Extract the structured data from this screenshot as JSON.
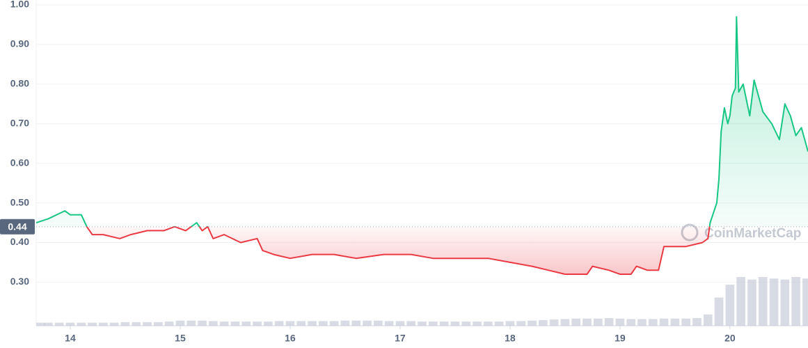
{
  "chart_data": {
    "type": "line",
    "x": [
      13.69,
      13.8,
      13.95,
      14.0,
      14.1,
      14.15,
      14.2,
      14.3,
      14.45,
      14.55,
      14.7,
      14.85,
      14.95,
      15.05,
      15.15,
      15.2,
      15.25,
      15.3,
      15.4,
      15.55,
      15.7,
      15.75,
      15.85,
      16.0,
      16.2,
      16.4,
      16.6,
      16.85,
      17.1,
      17.3,
      17.5,
      17.7,
      17.8,
      18.0,
      18.2,
      18.35,
      18.5,
      18.7,
      18.75,
      18.9,
      19.0,
      19.1,
      19.15,
      19.25,
      19.35,
      19.4,
      19.6,
      19.75,
      19.8,
      19.82,
      19.88,
      19.9,
      19.92,
      19.95,
      19.98,
      20.0,
      20.02,
      20.05,
      20.06,
      20.08,
      20.12,
      20.18,
      20.22,
      20.3,
      20.38,
      20.45,
      20.5,
      20.55,
      20.6,
      20.65,
      20.71
    ],
    "values": [
      0.45,
      0.46,
      0.48,
      0.47,
      0.47,
      0.44,
      0.42,
      0.42,
      0.41,
      0.42,
      0.43,
      0.43,
      0.44,
      0.43,
      0.45,
      0.43,
      0.44,
      0.41,
      0.42,
      0.4,
      0.41,
      0.38,
      0.37,
      0.36,
      0.37,
      0.37,
      0.36,
      0.37,
      0.37,
      0.36,
      0.36,
      0.36,
      0.36,
      0.35,
      0.34,
      0.33,
      0.32,
      0.32,
      0.34,
      0.33,
      0.32,
      0.32,
      0.34,
      0.33,
      0.33,
      0.39,
      0.39,
      0.4,
      0.41,
      0.45,
      0.5,
      0.56,
      0.68,
      0.74,
      0.7,
      0.72,
      0.77,
      0.79,
      0.97,
      0.78,
      0.8,
      0.72,
      0.81,
      0.73,
      0.7,
      0.66,
      0.75,
      0.72,
      0.67,
      0.69,
      0.63
    ],
    "baseline": 0.44,
    "up_color": "#16c784",
    "down_color": "#ea3943",
    "volume_x": [
      13.7,
      13.8,
      13.9,
      14.0,
      14.1,
      14.2,
      14.3,
      14.4,
      14.5,
      14.6,
      14.7,
      14.8,
      14.9,
      15.0,
      15.1,
      15.2,
      15.3,
      15.4,
      15.5,
      15.6,
      15.7,
      15.8,
      15.9,
      16.0,
      16.1,
      16.2,
      16.3,
      16.4,
      16.5,
      16.6,
      16.7,
      16.8,
      16.9,
      17.0,
      17.1,
      17.2,
      17.3,
      17.4,
      17.5,
      17.6,
      17.7,
      17.8,
      17.9,
      18.0,
      18.1,
      18.2,
      18.3,
      18.4,
      18.5,
      18.6,
      18.7,
      18.8,
      18.9,
      19.0,
      19.1,
      19.2,
      19.3,
      19.4,
      19.5,
      19.6,
      19.7,
      19.8,
      19.9,
      20.0,
      20.1,
      20.2,
      20.3,
      20.4,
      20.5,
      20.6,
      20.7
    ],
    "volume": [
      6,
      6,
      6,
      6,
      6,
      6,
      6,
      6,
      7,
      7,
      7,
      7,
      8,
      10,
      10,
      10,
      9,
      8,
      8,
      8,
      8,
      8,
      9,
      9,
      9,
      9,
      9,
      9,
      10,
      10,
      10,
      10,
      9,
      9,
      9,
      8,
      8,
      8,
      8,
      8,
      8,
      8,
      8,
      9,
      9,
      10,
      11,
      12,
      13,
      14,
      14,
      14,
      15,
      14,
      13,
      13,
      13,
      14,
      14,
      14,
      15,
      22,
      55,
      80,
      95,
      90,
      95,
      92,
      90,
      95,
      92
    ],
    "volume_color": "#c7cad9",
    "xlim": [
      13.69,
      20.71
    ],
    "xticks": [
      14,
      15,
      16,
      17,
      18,
      19,
      20
    ],
    "ylim": [
      0.19,
      1.0
    ],
    "yticks": [
      {
        "value": 0.3,
        "label": "0.30"
      },
      {
        "value": 0.4,
        "label": "0.40"
      },
      {
        "value": 0.5,
        "label": "0.50"
      },
      {
        "value": 0.6,
        "label": "0.60"
      },
      {
        "value": 0.7,
        "label": "0.70"
      },
      {
        "value": 0.8,
        "label": "0.80"
      },
      {
        "value": 0.9,
        "label": "0.90"
      },
      {
        "value": 1.0,
        "label": "1.00"
      }
    ],
    "grid": true,
    "watermark": "CoinMarketCap"
  }
}
